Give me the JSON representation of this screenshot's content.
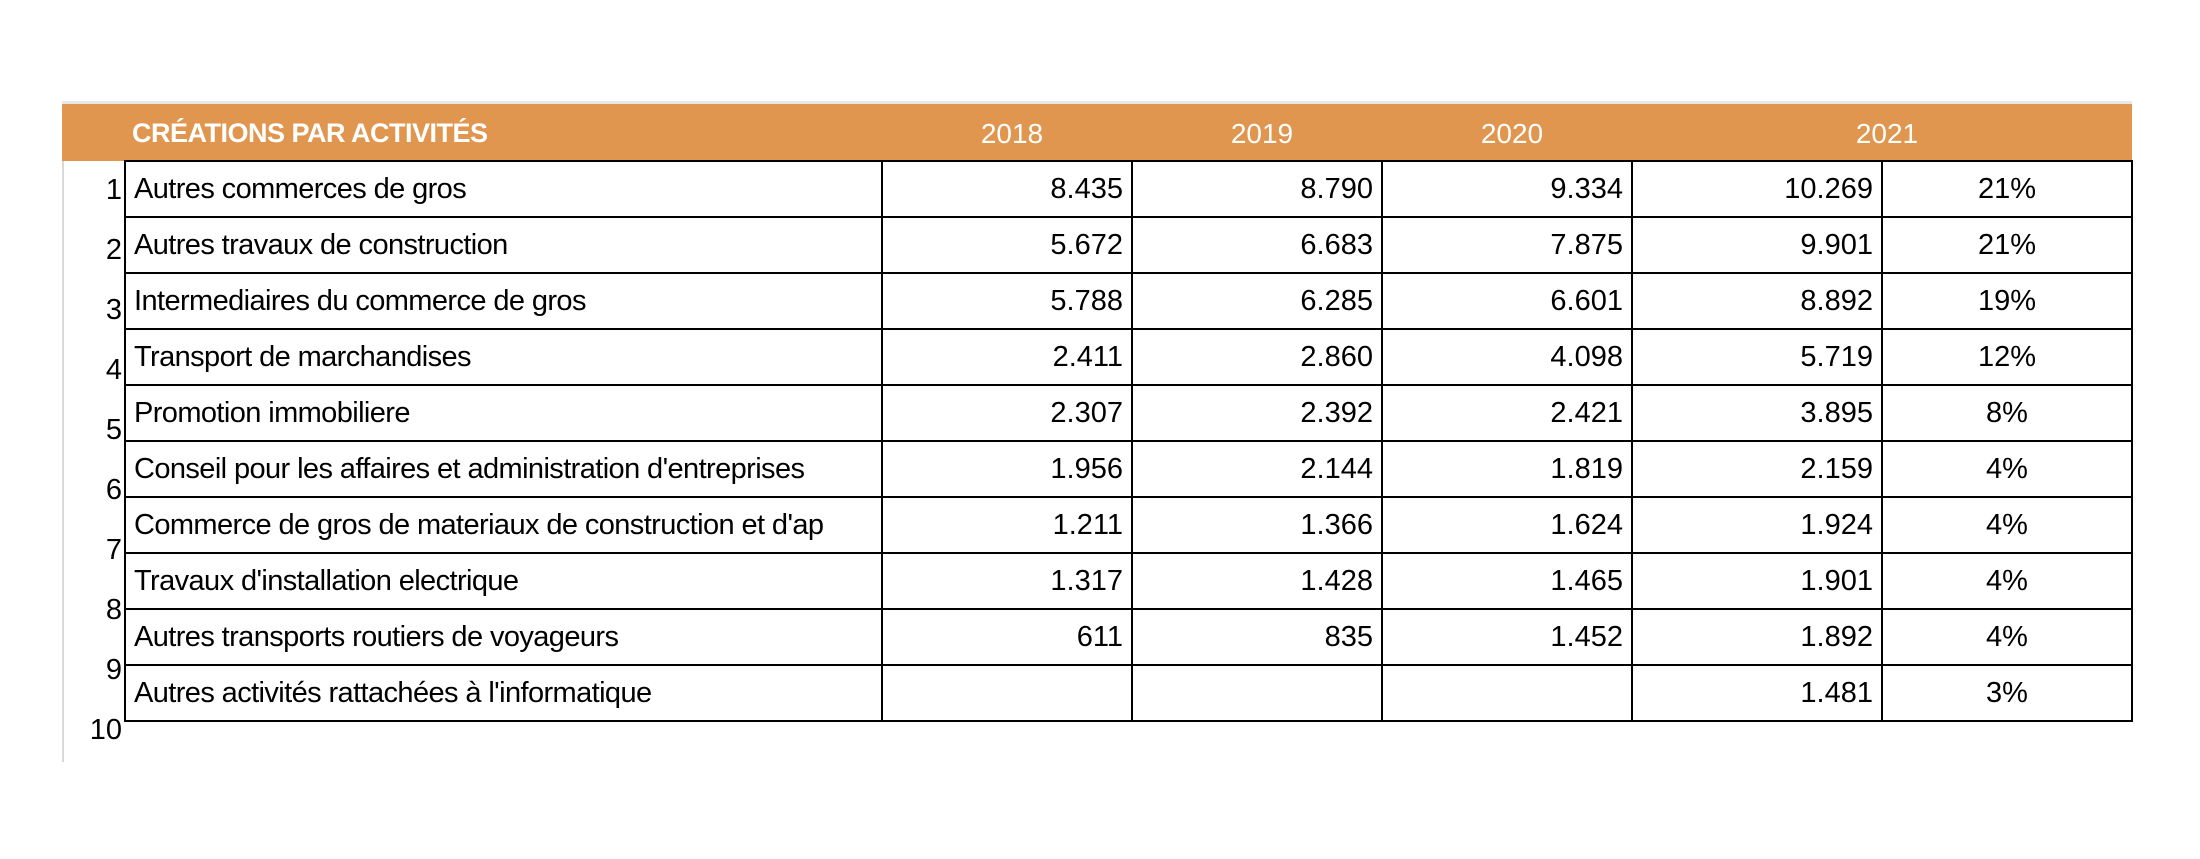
{
  "table": {
    "header_title": "CRÉATIONS PAR ACTIVITÉS",
    "years": [
      "2018",
      "2019",
      "2020",
      "2021"
    ],
    "rows": [
      {
        "rank": "1",
        "activity": "Autres commerces de gros",
        "v2018": "8.435",
        "v2019": "8.790",
        "v2020": "9.334",
        "v2021": "10.269",
        "share": "21%"
      },
      {
        "rank": "2",
        "activity": "Autres travaux de construction",
        "v2018": "5.672",
        "v2019": "6.683",
        "v2020": "7.875",
        "v2021": "9.901",
        "share": "21%"
      },
      {
        "rank": "3",
        "activity": "Intermediaires du commerce de gros",
        "v2018": "5.788",
        "v2019": "6.285",
        "v2020": "6.601",
        "v2021": "8.892",
        "share": "19%"
      },
      {
        "rank": "4",
        "activity": "Transport de marchandises",
        "v2018": "2.411",
        "v2019": "2.860",
        "v2020": "4.098",
        "v2021": "5.719",
        "share": "12%"
      },
      {
        "rank": "5",
        "activity": "Promotion immobiliere",
        "v2018": "2.307",
        "v2019": "2.392",
        "v2020": "2.421",
        "v2021": "3.895",
        "share": "8%"
      },
      {
        "rank": "6",
        "activity": "Conseil pour les affaires et administration d'entreprises",
        "v2018": "1.956",
        "v2019": "2.144",
        "v2020": "1.819",
        "v2021": "2.159",
        "share": "4%"
      },
      {
        "rank": "7",
        "activity": "Commerce de gros de materiaux de construction et d'ap",
        "v2018": "1.211",
        "v2019": "1.366",
        "v2020": "1.624",
        "v2021": "1.924",
        "share": "4%"
      },
      {
        "rank": "8",
        "activity": "Travaux d'installation electrique",
        "v2018": "1.317",
        "v2019": "1.428",
        "v2020": "1.465",
        "v2021": "1.901",
        "share": "4%"
      },
      {
        "rank": "9",
        "activity": "Autres transports routiers de voyageurs",
        "v2018": "611",
        "v2019": "835",
        "v2020": "1.452",
        "v2021": "1.892",
        "share": "4%"
      },
      {
        "rank": "10",
        "activity": "Autres activités rattachées à l'informatique",
        "v2018": "",
        "v2019": "",
        "v2020": "",
        "v2021": "1.481",
        "share": "3%"
      }
    ]
  },
  "colors": {
    "header_bg": "#e0964e",
    "header_text": "#ffffff",
    "grid_border": "#000000"
  }
}
